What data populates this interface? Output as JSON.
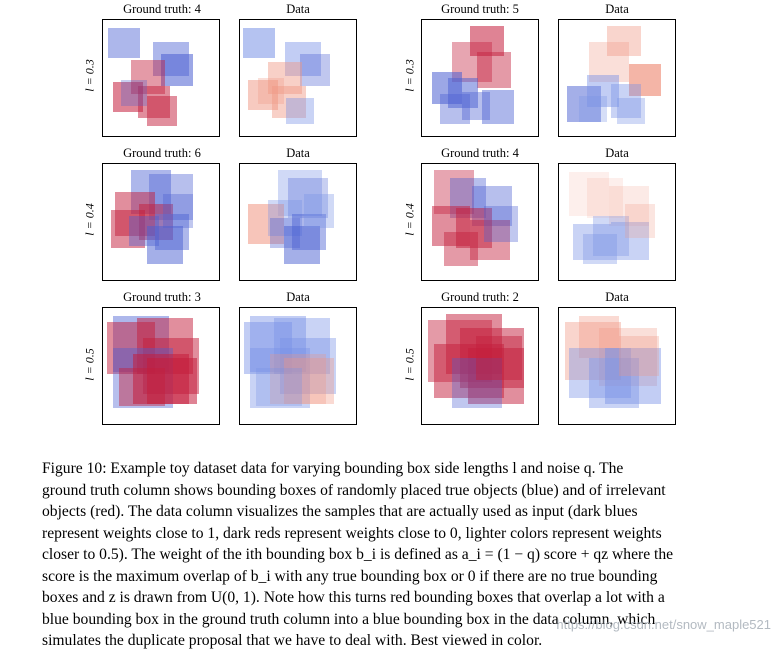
{
  "figure": {
    "columns": [
      {
        "title_gt": "Ground truth: 4",
        "title_data": "Data"
      },
      {
        "title_gt": "Ground truth: 5",
        "title_data": "Data"
      }
    ],
    "rows": [
      {
        "label": "l = 0.3",
        "left_gt_title": "Ground truth: 4",
        "right_gt_title": "Ground truth: 5"
      },
      {
        "label": "l = 0.4",
        "left_gt_title": "Ground truth: 6",
        "right_gt_title": "Ground truth: 4"
      },
      {
        "label": "l = 0.5",
        "left_gt_title": "Ground truth: 3",
        "right_gt_title": "Ground truth: 2"
      }
    ],
    "data_title": "Data",
    "colors": {
      "blue": "#4a5fd0",
      "red": "#c0173a",
      "light_blue": "#9fb2ee",
      "light_red": "#f0a996"
    }
  },
  "caption": {
    "line1": "Figure 10:  Example toy dataset data for varying bounding box side lengths l and noise q.  The",
    "line2": "ground truth column shows bounding boxes of randomly placed true objects (blue) and of irrelevant",
    "line3": "objects (red). The data column visualizes the samples that are actually used as input (dark blues",
    "line4": "represent weights close to 1, dark reds represent weights close to 0, lighter colors represent weights",
    "line5": "closer to 0.5). The weight of the ith bounding box b_i is defined as a_i = (1 − q) score + qz where the",
    "line6": "score is the maximum overlap of b_i with any true bounding box or 0 if there are no true bounding",
    "line7": "boxes and z is drawn from U(0, 1). Note how this turns red bounding boxes that overlap a lot with a",
    "line8": "blue bounding box in the ground truth column into a blue bounding box in the data column, which",
    "line9": "simulates the duplicate proposal that we have to deal with. Best viewed in color."
  },
  "watermark": "https://blog.csdn.net/snow_maple521"
}
